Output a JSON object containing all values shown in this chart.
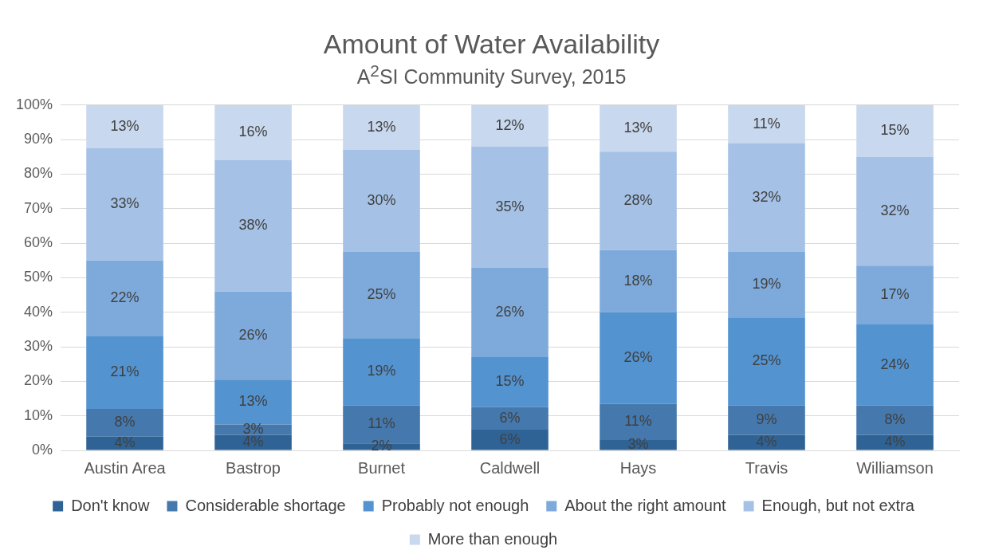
{
  "chart_data": {
    "type": "bar",
    "stacked": true,
    "title": "Amount of Water Availability",
    "subtitle": "A$^{2}$SI Community Survey, 2015",
    "categories": [
      "Austin Area",
      "Bastrop",
      "Burnet",
      "Caldwell",
      "Hays",
      "Travis",
      "Williamson"
    ],
    "series": [
      {
        "name": "Don't know",
        "color": "#2f6396",
        "values": [
          4,
          4.5,
          2,
          6,
          3,
          4.5,
          4.5
        ],
        "value_labels": [
          "4%",
          "4%",
          "2%",
          "6%",
          "3%",
          "4%",
          "4%"
        ]
      },
      {
        "name": "Considerable shortage",
        "color": "#4578ad",
        "values": [
          8,
          3,
          11,
          6.5,
          10.5,
          8.5,
          8.5
        ],
        "value_labels": [
          "8%",
          "3%",
          "11%",
          "6%",
          "11%",
          "9%",
          "8%"
        ]
      },
      {
        "name": "Probably not enough",
        "color": "#5393cf",
        "values": [
          21,
          13,
          19.5,
          14.5,
          26.5,
          25.5,
          23.5
        ],
        "value_labels": [
          "21%",
          "13%",
          "19%",
          "15%",
          "26%",
          "25%",
          "24%"
        ]
      },
      {
        "name": "About the right amount",
        "color": "#7eaadb",
        "values": [
          22,
          25.5,
          25,
          26,
          18,
          19,
          17
        ],
        "value_labels": [
          "22%",
          "26%",
          "25%",
          "26%",
          "18%",
          "19%",
          "17%"
        ]
      },
      {
        "name": "Enough, but not extra",
        "color": "#a5c2e6",
        "values": [
          32.5,
          38,
          29.5,
          35,
          28.5,
          31.5,
          31.5
        ],
        "value_labels": [
          "33%",
          "38%",
          "30%",
          "35%",
          "28%",
          "32%",
          "32%"
        ]
      },
      {
        "name": "More than enough",
        "color": "#c8d8ee",
        "values": [
          12.5,
          16,
          13,
          12,
          13.5,
          11,
          15
        ],
        "value_labels": [
          "13%",
          "16%",
          "13%",
          "12%",
          "13%",
          "11%",
          "15%"
        ]
      }
    ],
    "ylim": [
      0,
      100
    ],
    "yticks": [
      {
        "value": 0,
        "label": "0%"
      },
      {
        "value": 10,
        "label": "10%"
      },
      {
        "value": 20,
        "label": "20%"
      },
      {
        "value": 30,
        "label": "30%"
      },
      {
        "value": 40,
        "label": "40%"
      },
      {
        "value": 50,
        "label": "50%"
      },
      {
        "value": 60,
        "label": "60%"
      },
      {
        "value": 70,
        "label": "70%"
      },
      {
        "value": 80,
        "label": "80%"
      },
      {
        "value": 90,
        "label": "90%"
      },
      {
        "value": 100,
        "label": "100%"
      }
    ],
    "grid": "y",
    "legend": "bottom"
  }
}
